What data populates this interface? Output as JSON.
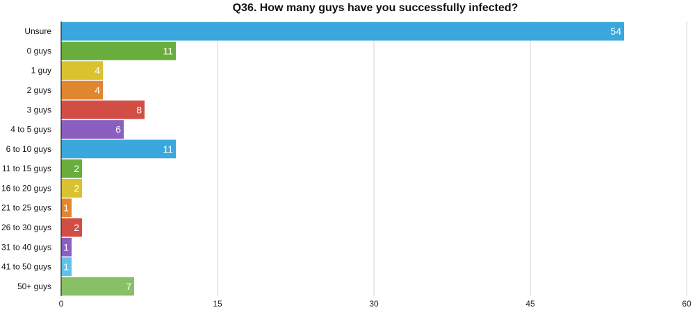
{
  "chart_data": {
    "type": "bar",
    "orientation": "horizontal",
    "title": "Q36. How many guys have you successfully infected?",
    "xlabel": "",
    "ylabel": "",
    "categories": [
      "Unsure",
      "0 guys",
      "1 guy",
      "2 guys",
      "3 guys",
      "4 to 5 guys",
      "6 to 10 guys",
      "11 to 15 guys",
      "16 to 20 guys",
      "21 to 25 guys",
      "26 to 30 guys",
      "31 to 40 guys",
      "41 to 50 guys",
      "50+ guys"
    ],
    "values": [
      54,
      11,
      4,
      4,
      8,
      6,
      11,
      2,
      2,
      1,
      2,
      1,
      1,
      7
    ],
    "value_labels": [
      "54",
      "11",
      "4",
      "4",
      "8",
      "6",
      "11",
      "2",
      "2",
      "1",
      "2",
      "1",
      "1",
      "7"
    ],
    "colors": [
      "#3aa8dc",
      "#69ad3c",
      "#d9c22e",
      "#e08630",
      "#d24e45",
      "#8a5fbf",
      "#3aa8dc",
      "#69ad3c",
      "#d9c22e",
      "#e08630",
      "#d24e45",
      "#8a5fbf",
      "#5fc2e8",
      "#88c065"
    ],
    "xlim": [
      0,
      60
    ],
    "xticks": [
      0,
      15,
      30,
      45,
      60
    ],
    "xtick_labels": [
      "0",
      "15",
      "30",
      "45",
      "60"
    ],
    "grid": true,
    "legend": "none"
  }
}
